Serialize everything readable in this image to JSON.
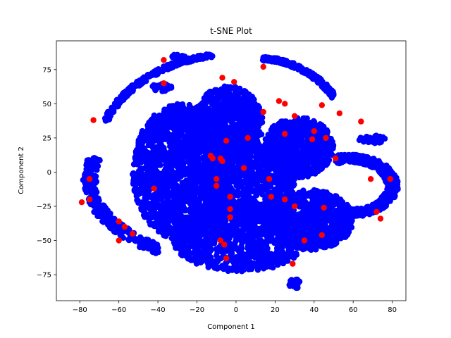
{
  "chart_data": {
    "type": "scatter",
    "title": "t-SNE Plot",
    "xlabel": "Component 1",
    "ylabel": "Component 2",
    "xlim": [
      -92,
      87
    ],
    "ylim": [
      -94,
      96
    ],
    "xticks": [
      -80,
      -60,
      -40,
      -20,
      0,
      20,
      40,
      60,
      80
    ],
    "yticks": [
      -75,
      -50,
      -25,
      0,
      25,
      50,
      75
    ],
    "xtick_labels": [
      "−80",
      "−60",
      "−40",
      "−20",
      "0",
      "20",
      "40",
      "60",
      "80"
    ],
    "ytick_labels": [
      "−75",
      "−50",
      "−25",
      "0",
      "25",
      "50",
      "75"
    ],
    "grid": false,
    "colors": {
      "blue": "#0000ff",
      "red": "#ff0000"
    },
    "clusters": [
      {
        "name": "top-left-arc",
        "shape": "arc",
        "cx": -2,
        "cy": 8,
        "rx": 70,
        "ry": 78,
        "a0": 98,
        "a1": 158,
        "width": 3,
        "n": 260
      },
      {
        "name": "left-arc",
        "shape": "arc",
        "cx": -2,
        "cy": -5,
        "rx": 73,
        "ry": 60,
        "a0": 165,
        "a1": 240,
        "width": 7,
        "n": 300
      },
      {
        "name": "top-right-arc",
        "shape": "arc",
        "cx": 12,
        "cy": 5,
        "rx": 50,
        "ry": 78,
        "a0": 40,
        "a1": 88,
        "width": 3,
        "n": 260
      },
      {
        "name": "right-arc",
        "shape": "arc",
        "cx": 58,
        "cy": -10,
        "rx": 22,
        "ry": 20,
        "a0": -100,
        "a1": 110,
        "width": 6,
        "n": 500
      },
      {
        "name": "center-left-blob",
        "shape": "blob",
        "cx": -28,
        "cy": 0,
        "rx": 25,
        "ry": 50,
        "n": 1600
      },
      {
        "name": "center-top-blob",
        "shape": "blob",
        "cx": -4,
        "cy": 35,
        "rx": 18,
        "ry": 28,
        "n": 700
      },
      {
        "name": "center-blob",
        "shape": "blob",
        "cx": 5,
        "cy": -5,
        "rx": 25,
        "ry": 30,
        "n": 900
      },
      {
        "name": "center-bottom-blob",
        "shape": "blob",
        "cx": 2,
        "cy": -48,
        "rx": 35,
        "ry": 25,
        "n": 1000
      },
      {
        "name": "right-center-blob",
        "shape": "blob",
        "cx": 32,
        "cy": 18,
        "rx": 18,
        "ry": 22,
        "n": 700
      },
      {
        "name": "bottom-right-blob",
        "shape": "blob",
        "cx": 38,
        "cy": -35,
        "rx": 22,
        "ry": 22,
        "n": 800
      },
      {
        "name": "far-right-small",
        "shape": "blob",
        "cx": 70,
        "cy": 24,
        "rx": 7,
        "ry": 3,
        "n": 50
      },
      {
        "name": "top-small-1",
        "shape": "blob",
        "cx": -30,
        "cy": 84,
        "rx": 4,
        "ry": 2,
        "n": 25
      },
      {
        "name": "top-small-2",
        "shape": "blob",
        "cx": -38,
        "cy": 62,
        "rx": 5,
        "ry": 3,
        "n": 40
      },
      {
        "name": "bottom-small",
        "shape": "blob",
        "cx": 30,
        "cy": -82,
        "rx": 3,
        "ry": 4,
        "n": 25
      }
    ],
    "red_points": [
      [
        -37,
        82
      ],
      [
        -37,
        65
      ],
      [
        -7,
        69
      ],
      [
        -1,
        66
      ],
      [
        14,
        77
      ],
      [
        22,
        52
      ],
      [
        25,
        50
      ],
      [
        44,
        49
      ],
      [
        53,
        43
      ],
      [
        64,
        37
      ],
      [
        -73,
        38
      ],
      [
        -79,
        -22
      ],
      [
        -75,
        -20
      ],
      [
        -75,
        -5
      ],
      [
        -60,
        -36
      ],
      [
        -57,
        -40
      ],
      [
        -53,
        -45
      ],
      [
        -60,
        -50
      ],
      [
        -13,
        12
      ],
      [
        -12,
        10
      ],
      [
        -8,
        10
      ],
      [
        -5,
        23
      ],
      [
        6,
        25
      ],
      [
        25,
        28
      ],
      [
        40,
        30
      ],
      [
        46,
        25
      ],
      [
        51,
        10
      ],
      [
        -10,
        -10
      ],
      [
        -7,
        8
      ],
      [
        4,
        3
      ],
      [
        -3,
        -18
      ],
      [
        17,
        -5
      ],
      [
        18,
        -18
      ],
      [
        25,
        -20
      ],
      [
        30,
        -25
      ],
      [
        -3,
        -27
      ],
      [
        -3,
        -33
      ],
      [
        -8,
        -50
      ],
      [
        -6,
        -53
      ],
      [
        -5,
        -63
      ],
      [
        29,
        -67
      ],
      [
        35,
        -50
      ],
      [
        45,
        -26
      ],
      [
        44,
        -46
      ],
      [
        72,
        -29
      ],
      [
        74,
        -34
      ],
      [
        79,
        -5
      ],
      [
        69,
        -5
      ],
      [
        39,
        24
      ],
      [
        14,
        44
      ],
      [
        30,
        41
      ],
      [
        -42,
        -12
      ],
      [
        -10,
        -5
      ]
    ]
  }
}
